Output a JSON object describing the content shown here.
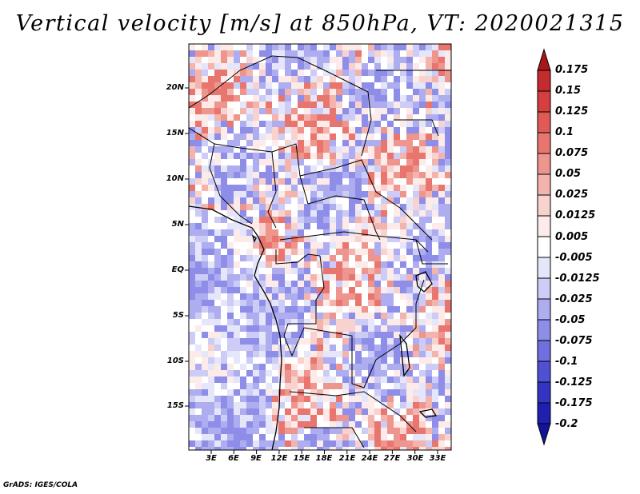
{
  "title": "Vertical velocity [m/s] at 850hPa, VT: 2020021315",
  "credit": "GrADS: IGES/COLA",
  "lat_labels": [
    "20N",
    "15N",
    "10N",
    "5N",
    "EQ",
    "5S",
    "10S",
    "15S"
  ],
  "lon_labels": [
    "3E",
    "6E",
    "9E",
    "12E",
    "15E",
    "18E",
    "21E",
    "24E",
    "27E",
    "30E",
    "33E"
  ],
  "colorbar": {
    "levels": [
      "0.175",
      "0.15",
      "0.125",
      "0.1",
      "0.075",
      "0.05",
      "0.025",
      "0.0125",
      "0.005",
      "-0.005",
      "-0.0125",
      "-0.025",
      "-0.05",
      "-0.075",
      "-0.1",
      "-0.125",
      "-0.175",
      "-0.2"
    ],
    "colors": [
      "#a8171c",
      "#c42a2e",
      "#d63f3f",
      "#e05a55",
      "#e8766f",
      "#ee958e",
      "#f4b4ae",
      "#f8d2ce",
      "#fcebe9",
      "#ffffff",
      "#e6e6fb",
      "#ccccf7",
      "#adadf0",
      "#8e8ee8",
      "#6f6fde",
      "#5050d2",
      "#3434c4",
      "#1f1fb0",
      "#14149a"
    ]
  }
}
